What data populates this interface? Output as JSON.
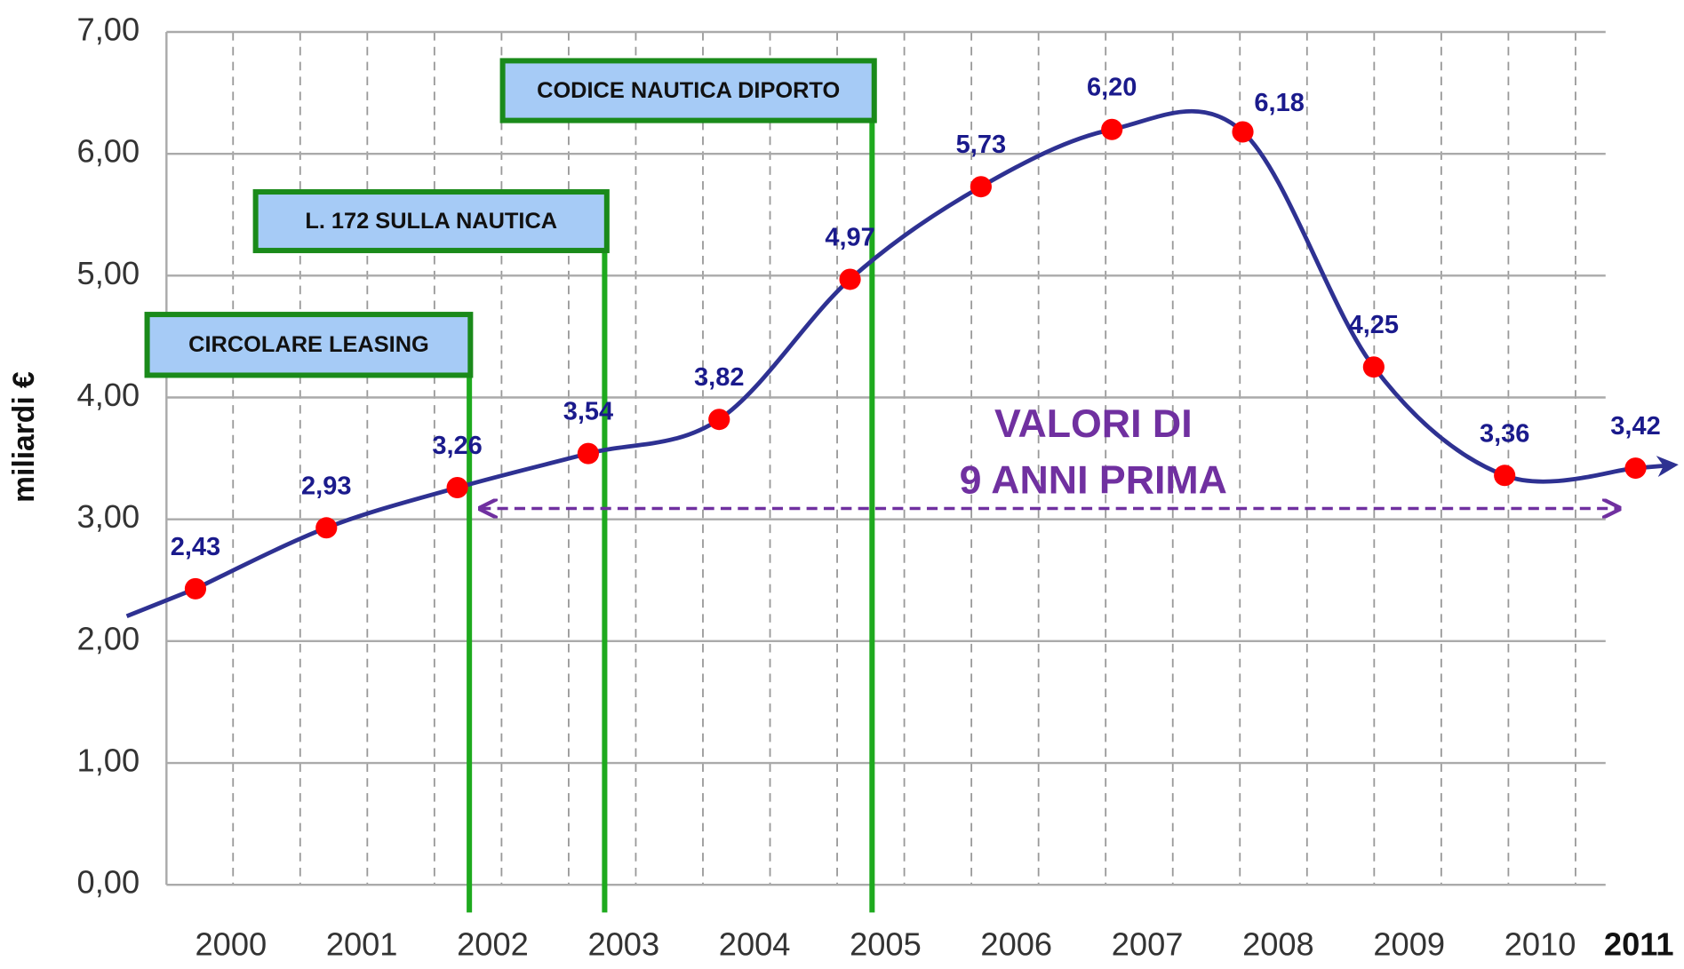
{
  "chart_data": {
    "type": "line",
    "y_label": "miliardi €",
    "categories": [
      "2000",
      "2001",
      "2002",
      "2003",
      "2004",
      "2005",
      "2006",
      "2007",
      "2008",
      "2009",
      "2010",
      "2011"
    ],
    "values": [
      2.43,
      2.93,
      3.26,
      3.54,
      3.82,
      4.97,
      5.73,
      6.2,
      6.18,
      4.25,
      3.36,
      3.42
    ],
    "value_labels": [
      "2,43",
      "2,93",
      "3,26",
      "3,54",
      "3,82",
      "4,97",
      "5,73",
      "6,20",
      "6,18",
      "4,25",
      "3,36",
      "3,42"
    ],
    "color": "#2e3192",
    "marker_color": "#ff0000",
    "ylim": [
      0,
      7
    ],
    "yticks": [
      {
        "value": 0,
        "label": "0,00"
      },
      {
        "value": 1,
        "label": "1,00"
      },
      {
        "value": 2,
        "label": "2,00"
      },
      {
        "value": 3,
        "label": "3,00"
      },
      {
        "value": 4,
        "label": "4,00"
      },
      {
        "value": 5,
        "label": "5,00"
      },
      {
        "value": 6,
        "label": "6,00"
      },
      {
        "value": 7,
        "label": "7,00"
      }
    ],
    "grid": true,
    "annotations": [
      {
        "text": "CIRCOLARE LEASING"
      },
      {
        "text": "L. 172 SULLA NAUTICA"
      },
      {
        "text": "CODICE NAUTICA DIPORTO"
      }
    ],
    "note_lines": [
      "VALORI DI",
      "9 ANNI PRIMA"
    ]
  }
}
